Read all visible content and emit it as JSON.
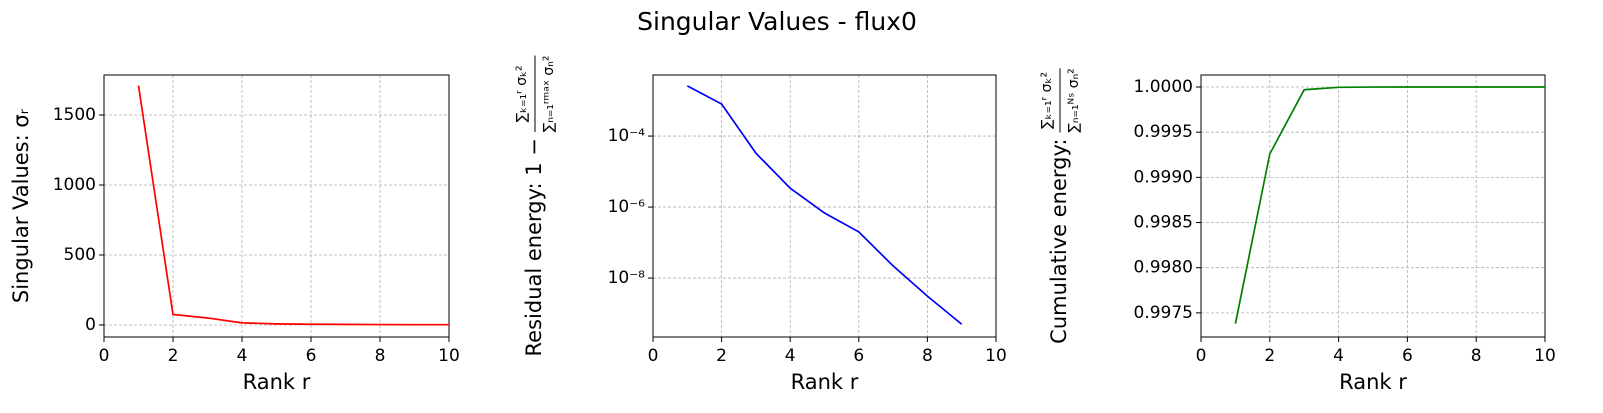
{
  "title": "Singular Values - flux0",
  "chart_data": [
    {
      "type": "line",
      "x": [
        1,
        2,
        3,
        4,
        5,
        6,
        7,
        8,
        9,
        10
      ],
      "series": [
        {
          "color": "#ff0000",
          "values": [
            1710,
            75,
            50,
            15,
            8,
            5,
            4,
            3,
            2,
            2
          ]
        }
      ],
      "xlim": [
        0,
        10
      ],
      "xticks": [
        0,
        2,
        4,
        6,
        8,
        10
      ],
      "ylim": [
        -86,
        1786
      ],
      "yticks": [
        0,
        500,
        1000,
        1500
      ],
      "yscale": "linear",
      "grid": true,
      "xlabel": "Rank r",
      "ylabel": "Singular Values: σᵣ"
    },
    {
      "type": "line",
      "x": [
        1,
        2,
        3,
        4,
        5,
        6,
        7,
        8,
        9
      ],
      "series": [
        {
          "color": "#0000ff",
          "values": [
            0.0026,
            0.0008,
            3.3e-05,
            3.4e-06,
            6.8e-07,
            2e-07,
            2.2e-08,
            3.1e-09,
            5e-10
          ]
        }
      ],
      "xlim": [
        0,
        10
      ],
      "xticks": [
        0,
        2,
        4,
        6,
        8,
        10
      ],
      "ylim": [
        2.188e-10,
        0.00525
      ],
      "yticks": [
        {
          "value": 0.0001,
          "label": "10⁻⁴"
        },
        {
          "value": 1e-06,
          "label": "10⁻⁶"
        },
        {
          "value": 1e-08,
          "label": "10⁻⁸"
        }
      ],
      "yscale": "log",
      "grid": true,
      "xlabel": "Rank r",
      "ylabel": "Residual energy: 1 −",
      "ylabel_numerator": "∑ₖ₌₁ʳ σₖ²",
      "ylabel_denominator": "∑ₙ₌₁ʳᵐᵃˣ σₙ²"
    },
    {
      "type": "line",
      "x": [
        1,
        2,
        3,
        4,
        5,
        6,
        7,
        8,
        9,
        10
      ],
      "series": [
        {
          "color": "#008000",
          "values": [
            0.99738,
            0.99926,
            0.99997,
            0.999997,
            0.9999995,
            1.0,
            1.0,
            1.0,
            1.0,
            1.0
          ]
        }
      ],
      "xlim": [
        0,
        10
      ],
      "xticks": [
        0,
        2,
        4,
        6,
        8,
        10
      ],
      "ylim": [
        0.997233,
        1.000133
      ],
      "yticks": [
        {
          "value": 0.9975,
          "label": "0.9975"
        },
        {
          "value": 0.998,
          "label": "0.9980"
        },
        {
          "value": 0.9985,
          "label": "0.9985"
        },
        {
          "value": 0.999,
          "label": "0.9990"
        },
        {
          "value": 0.9995,
          "label": "0.9995"
        },
        {
          "value": 1.0,
          "label": "1.0000"
        }
      ],
      "yscale": "linear",
      "grid": true,
      "xlabel": "Rank r",
      "ylabel": "Cumulative energy:",
      "ylabel_numerator": "∑ₖ₌₁ʳ σₖ²",
      "ylabel_denominator": "∑ₙ₌₁ᴺˢ σₙ²"
    }
  ]
}
